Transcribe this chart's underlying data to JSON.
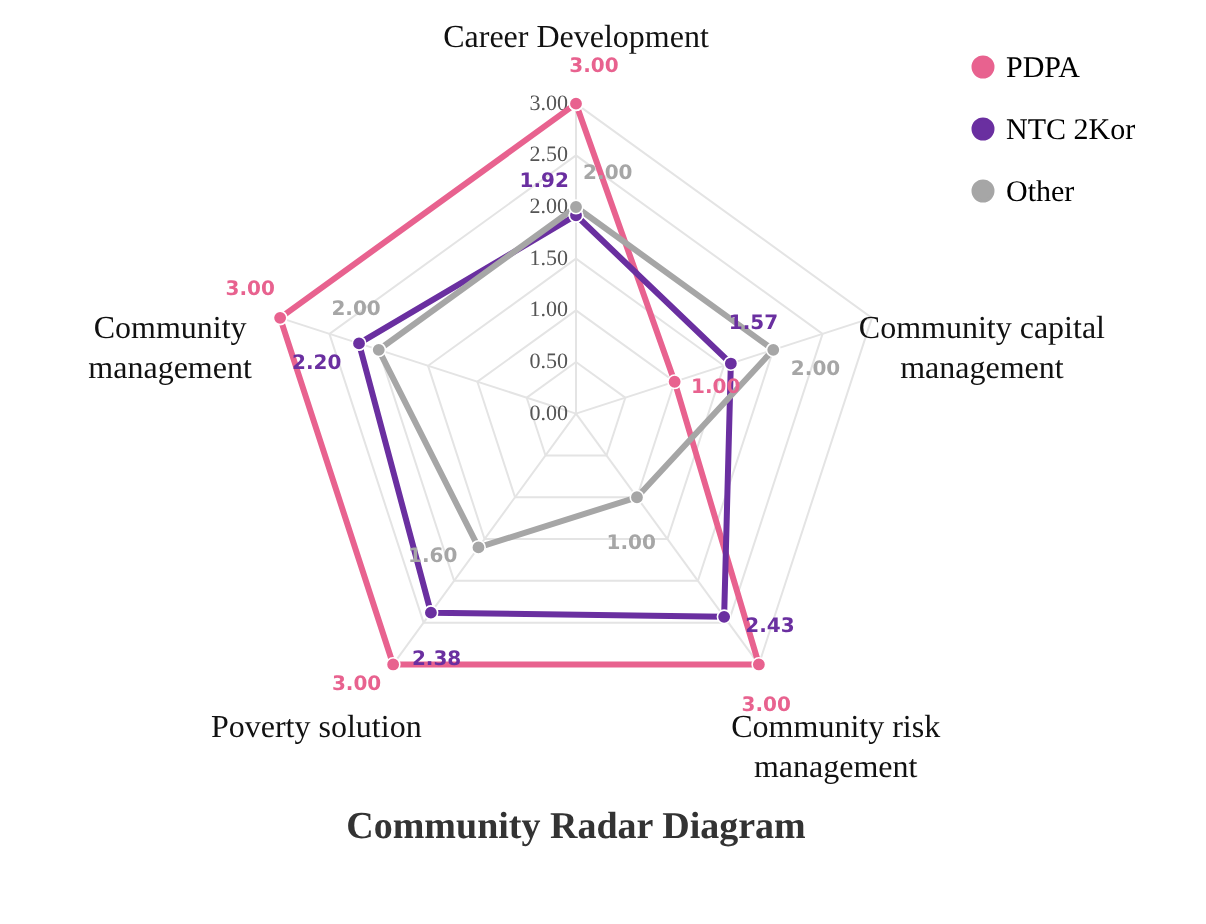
{
  "chart_data": {
    "type": "radar",
    "title": "Community Radar Diagram",
    "categories": [
      "Career Development",
      "Community capital management",
      "Community risk management",
      "Poverty solution",
      "Community management"
    ],
    "series": [
      {
        "name": "PDPA",
        "color": "#e8628f",
        "values": [
          3.0,
          1.0,
          3.0,
          3.0,
          3.0
        ],
        "value_labels": [
          "3.00",
          "1.00",
          "3.00",
          "3.00",
          "3.00"
        ]
      },
      {
        "name": "NTC 2Kor",
        "color": "#6a2fa0",
        "values": [
          1.92,
          1.57,
          2.43,
          2.38,
          2.2
        ],
        "value_labels": [
          "1.92",
          "1.57",
          "2.43",
          "2.38",
          "2.20"
        ]
      },
      {
        "name": "Other",
        "color": "#a6a6a6",
        "values": [
          2.0,
          2.0,
          1.0,
          1.6,
          2.0
        ],
        "value_labels": [
          "2.00",
          "2.00",
          "1.00",
          "1.60",
          "2.00"
        ]
      }
    ],
    "ylim": [
      0,
      3
    ],
    "yticks": [
      {
        "value": 0,
        "label": "0.00"
      },
      {
        "value": 0.5,
        "label": "0.50"
      },
      {
        "value": 1,
        "label": "1.00"
      },
      {
        "value": 1.5,
        "label": "1.50"
      },
      {
        "value": 2,
        "label": "2.00"
      },
      {
        "value": 2.5,
        "label": "2.50"
      },
      {
        "value": 3,
        "label": "3.00"
      }
    ],
    "legend": "top right",
    "marker": "circle",
    "grid": true
  }
}
